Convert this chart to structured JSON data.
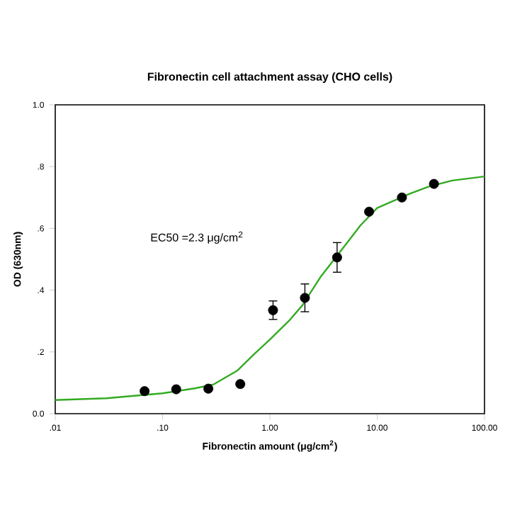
{
  "chart_data": {
    "type": "scatter",
    "title": "Fibronectin cell attachment assay (CHO cells)",
    "xlabel": "Fibronectin amount (μg/cm$^{2}$)",
    "ylabel": "OD (630nm)",
    "log": "x",
    "grid": false,
    "xlim": [
      0.01,
      100
    ],
    "xticks": [
      {
        "value": 0.01,
        "label": ".01"
      },
      {
        "value": 0.1,
        "label": ".10"
      },
      {
        "value": 1,
        "label": "1.00"
      },
      {
        "value": 10,
        "label": "10.00"
      },
      {
        "value": 100,
        "label": "100.00"
      }
    ],
    "ylim": [
      0,
      1
    ],
    "yticks": [
      {
        "value": 0,
        "label": "0.0"
      },
      {
        "value": 0.2,
        "label": ".2"
      },
      {
        "value": 0.4,
        "label": ".4"
      },
      {
        "value": 0.6,
        "label": ".6"
      },
      {
        "value": 0.8,
        "label": ".8"
      },
      {
        "value": 1,
        "label": "1.0"
      }
    ],
    "annotations": [
      "EC50 =2.3 μg/cm$^{2}$"
    ],
    "series": [
      {
        "type": "line",
        "color": "#33aa22",
        "marker": "none",
        "line_style": "solid",
        "x": [
          0.01,
          0.03,
          0.1,
          0.2,
          0.3,
          0.5,
          0.7,
          1,
          1.5,
          2,
          3,
          5,
          7,
          10,
          20,
          30,
          50,
          100
        ],
        "values": [
          0.044,
          0.05,
          0.066,
          0.082,
          0.095,
          0.14,
          0.19,
          0.24,
          0.3,
          0.35,
          0.445,
          0.544,
          0.61,
          0.666,
          0.712,
          0.735,
          0.755,
          0.768
        ]
      },
      {
        "color": "#000000",
        "marker": "circle",
        "x": [
          0.068,
          0.134,
          0.267,
          0.53,
          1.07,
          2.12,
          4.23,
          8.4,
          17,
          33.8
        ],
        "values": [
          0.073,
          0.079,
          0.081,
          0.096,
          0.335,
          0.375,
          0.506,
          0.654,
          0.7,
          0.744
        ],
        "errors": [
          null,
          null,
          null,
          null,
          0.03,
          0.045,
          0.048,
          null,
          null,
          null
        ]
      }
    ]
  }
}
